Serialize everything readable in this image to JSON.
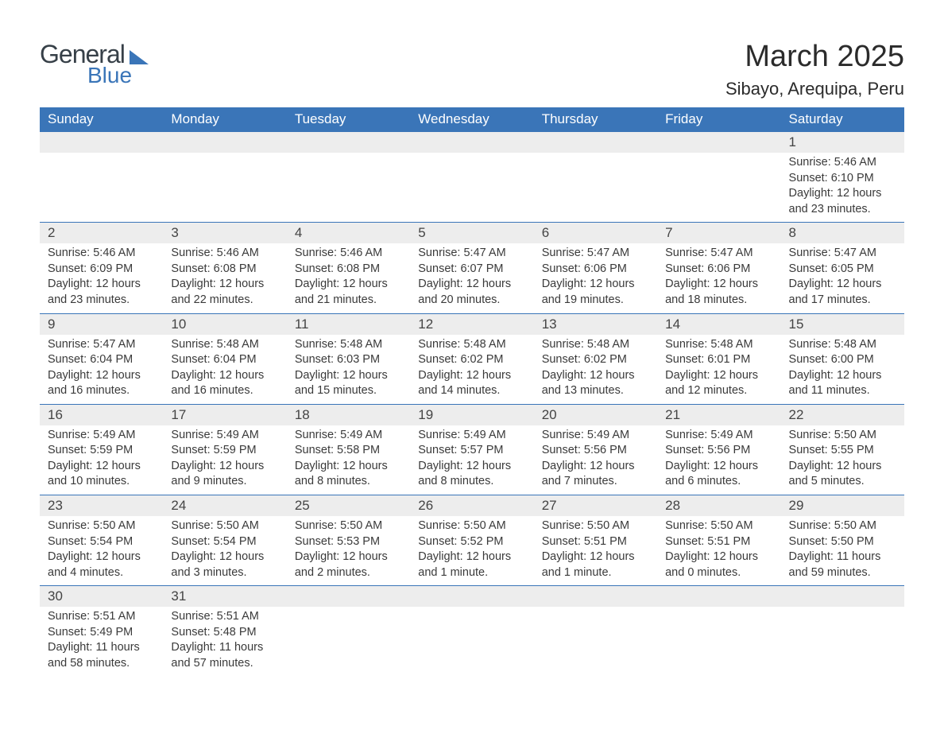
{
  "logo": {
    "text_top": "General",
    "text_bottom": "Blue"
  },
  "title": {
    "month_year": "March 2025",
    "location": "Sibayo, Arequipa, Peru"
  },
  "day_headers": [
    "Sunday",
    "Monday",
    "Tuesday",
    "Wednesday",
    "Thursday",
    "Friday",
    "Saturday"
  ],
  "weeks": [
    [
      {
        "day": "",
        "sunrise": "",
        "sunset": "",
        "daylight": ""
      },
      {
        "day": "",
        "sunrise": "",
        "sunset": "",
        "daylight": ""
      },
      {
        "day": "",
        "sunrise": "",
        "sunset": "",
        "daylight": ""
      },
      {
        "day": "",
        "sunrise": "",
        "sunset": "",
        "daylight": ""
      },
      {
        "day": "",
        "sunrise": "",
        "sunset": "",
        "daylight": ""
      },
      {
        "day": "",
        "sunrise": "",
        "sunset": "",
        "daylight": ""
      },
      {
        "day": "1",
        "sunrise": "Sunrise: 5:46 AM",
        "sunset": "Sunset: 6:10 PM",
        "daylight": "Daylight: 12 hours and 23 minutes."
      }
    ],
    [
      {
        "day": "2",
        "sunrise": "Sunrise: 5:46 AM",
        "sunset": "Sunset: 6:09 PM",
        "daylight": "Daylight: 12 hours and 23 minutes."
      },
      {
        "day": "3",
        "sunrise": "Sunrise: 5:46 AM",
        "sunset": "Sunset: 6:08 PM",
        "daylight": "Daylight: 12 hours and 22 minutes."
      },
      {
        "day": "4",
        "sunrise": "Sunrise: 5:46 AM",
        "sunset": "Sunset: 6:08 PM",
        "daylight": "Daylight: 12 hours and 21 minutes."
      },
      {
        "day": "5",
        "sunrise": "Sunrise: 5:47 AM",
        "sunset": "Sunset: 6:07 PM",
        "daylight": "Daylight: 12 hours and 20 minutes."
      },
      {
        "day": "6",
        "sunrise": "Sunrise: 5:47 AM",
        "sunset": "Sunset: 6:06 PM",
        "daylight": "Daylight: 12 hours and 19 minutes."
      },
      {
        "day": "7",
        "sunrise": "Sunrise: 5:47 AM",
        "sunset": "Sunset: 6:06 PM",
        "daylight": "Daylight: 12 hours and 18 minutes."
      },
      {
        "day": "8",
        "sunrise": "Sunrise: 5:47 AM",
        "sunset": "Sunset: 6:05 PM",
        "daylight": "Daylight: 12 hours and 17 minutes."
      }
    ],
    [
      {
        "day": "9",
        "sunrise": "Sunrise: 5:47 AM",
        "sunset": "Sunset: 6:04 PM",
        "daylight": "Daylight: 12 hours and 16 minutes."
      },
      {
        "day": "10",
        "sunrise": "Sunrise: 5:48 AM",
        "sunset": "Sunset: 6:04 PM",
        "daylight": "Daylight: 12 hours and 16 minutes."
      },
      {
        "day": "11",
        "sunrise": "Sunrise: 5:48 AM",
        "sunset": "Sunset: 6:03 PM",
        "daylight": "Daylight: 12 hours and 15 minutes."
      },
      {
        "day": "12",
        "sunrise": "Sunrise: 5:48 AM",
        "sunset": "Sunset: 6:02 PM",
        "daylight": "Daylight: 12 hours and 14 minutes."
      },
      {
        "day": "13",
        "sunrise": "Sunrise: 5:48 AM",
        "sunset": "Sunset: 6:02 PM",
        "daylight": "Daylight: 12 hours and 13 minutes."
      },
      {
        "day": "14",
        "sunrise": "Sunrise: 5:48 AM",
        "sunset": "Sunset: 6:01 PM",
        "daylight": "Daylight: 12 hours and 12 minutes."
      },
      {
        "day": "15",
        "sunrise": "Sunrise: 5:48 AM",
        "sunset": "Sunset: 6:00 PM",
        "daylight": "Daylight: 12 hours and 11 minutes."
      }
    ],
    [
      {
        "day": "16",
        "sunrise": "Sunrise: 5:49 AM",
        "sunset": "Sunset: 5:59 PM",
        "daylight": "Daylight: 12 hours and 10 minutes."
      },
      {
        "day": "17",
        "sunrise": "Sunrise: 5:49 AM",
        "sunset": "Sunset: 5:59 PM",
        "daylight": "Daylight: 12 hours and 9 minutes."
      },
      {
        "day": "18",
        "sunrise": "Sunrise: 5:49 AM",
        "sunset": "Sunset: 5:58 PM",
        "daylight": "Daylight: 12 hours and 8 minutes."
      },
      {
        "day": "19",
        "sunrise": "Sunrise: 5:49 AM",
        "sunset": "Sunset: 5:57 PM",
        "daylight": "Daylight: 12 hours and 8 minutes."
      },
      {
        "day": "20",
        "sunrise": "Sunrise: 5:49 AM",
        "sunset": "Sunset: 5:56 PM",
        "daylight": "Daylight: 12 hours and 7 minutes."
      },
      {
        "day": "21",
        "sunrise": "Sunrise: 5:49 AM",
        "sunset": "Sunset: 5:56 PM",
        "daylight": "Daylight: 12 hours and 6 minutes."
      },
      {
        "day": "22",
        "sunrise": "Sunrise: 5:50 AM",
        "sunset": "Sunset: 5:55 PM",
        "daylight": "Daylight: 12 hours and 5 minutes."
      }
    ],
    [
      {
        "day": "23",
        "sunrise": "Sunrise: 5:50 AM",
        "sunset": "Sunset: 5:54 PM",
        "daylight": "Daylight: 12 hours and 4 minutes."
      },
      {
        "day": "24",
        "sunrise": "Sunrise: 5:50 AM",
        "sunset": "Sunset: 5:54 PM",
        "daylight": "Daylight: 12 hours and 3 minutes."
      },
      {
        "day": "25",
        "sunrise": "Sunrise: 5:50 AM",
        "sunset": "Sunset: 5:53 PM",
        "daylight": "Daylight: 12 hours and 2 minutes."
      },
      {
        "day": "26",
        "sunrise": "Sunrise: 5:50 AM",
        "sunset": "Sunset: 5:52 PM",
        "daylight": "Daylight: 12 hours and 1 minute."
      },
      {
        "day": "27",
        "sunrise": "Sunrise: 5:50 AM",
        "sunset": "Sunset: 5:51 PM",
        "daylight": "Daylight: 12 hours and 1 minute."
      },
      {
        "day": "28",
        "sunrise": "Sunrise: 5:50 AM",
        "sunset": "Sunset: 5:51 PM",
        "daylight": "Daylight: 12 hours and 0 minutes."
      },
      {
        "day": "29",
        "sunrise": "Sunrise: 5:50 AM",
        "sunset": "Sunset: 5:50 PM",
        "daylight": "Daylight: 11 hours and 59 minutes."
      }
    ],
    [
      {
        "day": "30",
        "sunrise": "Sunrise: 5:51 AM",
        "sunset": "Sunset: 5:49 PM",
        "daylight": "Daylight: 11 hours and 58 minutes."
      },
      {
        "day": "31",
        "sunrise": "Sunrise: 5:51 AM",
        "sunset": "Sunset: 5:48 PM",
        "daylight": "Daylight: 11 hours and 57 minutes."
      },
      {
        "day": "",
        "sunrise": "",
        "sunset": "",
        "daylight": ""
      },
      {
        "day": "",
        "sunrise": "",
        "sunset": "",
        "daylight": ""
      },
      {
        "day": "",
        "sunrise": "",
        "sunset": "",
        "daylight": ""
      },
      {
        "day": "",
        "sunrise": "",
        "sunset": "",
        "daylight": ""
      },
      {
        "day": "",
        "sunrise": "",
        "sunset": "",
        "daylight": ""
      }
    ]
  ],
  "colors": {
    "header_bg": "#3a75b8",
    "header_text": "#ffffff",
    "day_number_bg": "#ededed",
    "border": "#3a75b8",
    "text": "#3a3a3a",
    "logo_dark": "#374048",
    "logo_blue": "#3a75b8"
  }
}
